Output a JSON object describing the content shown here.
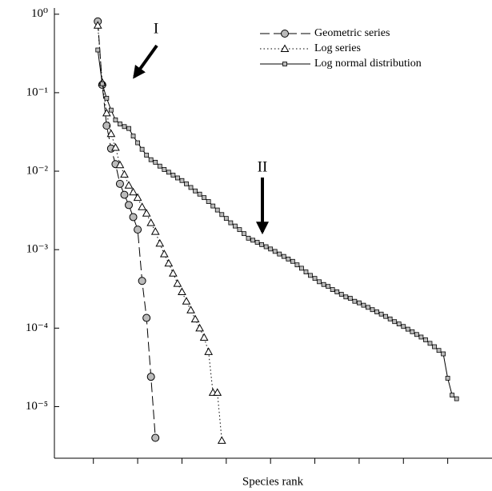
{
  "chart_data": {
    "type": "line",
    "xlabel": "Species rank",
    "yscale": "log",
    "ylim": [
      2.2e-06,
      1.2
    ],
    "yticks": [
      {
        "value": 1,
        "label": "10⁰"
      },
      {
        "value": 0.1,
        "label": "10⁻¹"
      },
      {
        "value": 0.01,
        "label": "10⁻²"
      },
      {
        "value": 0.001,
        "label": "10⁻³"
      },
      {
        "value": 0.0001,
        "label": "10⁻⁴"
      },
      {
        "value": 1e-05,
        "label": "10⁻⁵"
      }
    ],
    "xlim": [
      -8.8,
      90
    ],
    "xticks": [
      0,
      10,
      20,
      30,
      40,
      50,
      60,
      70,
      80
    ],
    "legend": "upper right",
    "annotations": [
      "I",
      "II"
    ],
    "series": [
      {
        "name": "Geometric series",
        "color": "#000000",
        "marker": "circle",
        "linestyle": "dashed",
        "x": [
          1,
          2,
          3,
          4,
          5,
          6,
          7,
          8,
          9,
          10,
          11,
          12,
          13,
          14
        ],
        "values": [
          0.81,
          0.126,
          0.038,
          0.0194,
          0.0123,
          0.0069,
          0.005,
          0.0037,
          0.0026,
          0.0018,
          0.0004,
          0.000135,
          2.4e-05,
          4e-06
        ]
      },
      {
        "name": "Log series",
        "color": "#000000",
        "marker": "triangle",
        "linestyle": "dotted",
        "x": [
          1,
          2,
          3,
          4,
          5,
          6,
          7,
          8,
          9,
          10,
          11,
          12,
          13,
          14,
          15,
          16,
          17,
          18,
          19,
          20,
          21,
          22,
          23,
          24,
          25,
          26,
          27,
          28,
          29
        ],
        "values": [
          0.72,
          0.135,
          0.055,
          0.03,
          0.02,
          0.012,
          0.0091,
          0.0066,
          0.0054,
          0.0046,
          0.0035,
          0.0029,
          0.0022,
          0.0017,
          0.0012,
          0.00088,
          0.00067,
          0.0005,
          0.00037,
          0.00029,
          0.00022,
          0.00017,
          0.00013,
          0.0001,
          7.6e-05,
          5e-05,
          1.51e-05,
          1.51e-05,
          3.7e-06
        ]
      },
      {
        "name": "Log normal distribution",
        "color": "#000000",
        "marker": "square",
        "linestyle": "solid",
        "x": [
          1,
          2,
          3,
          4,
          5,
          6,
          7,
          8,
          9,
          10,
          11,
          12,
          13,
          14,
          15,
          16,
          17,
          18,
          19,
          20,
          21,
          22,
          23,
          24,
          25,
          26,
          27,
          28,
          29,
          30,
          31,
          32,
          33,
          34,
          35,
          36,
          37,
          38,
          39,
          40,
          41,
          42,
          43,
          44,
          45,
          46,
          47,
          48,
          49,
          50,
          51,
          52,
          53,
          54,
          55,
          56,
          57,
          58,
          59,
          60,
          61,
          62,
          63,
          64,
          65,
          66,
          67,
          68,
          69,
          70,
          71,
          72,
          73,
          74,
          75,
          76,
          77,
          78,
          79,
          80,
          81,
          82
        ],
        "values": [
          0.35,
          0.13,
          0.085,
          0.06,
          0.045,
          0.04,
          0.037,
          0.035,
          0.028,
          0.023,
          0.019,
          0.016,
          0.014,
          0.013,
          0.0116,
          0.0105,
          0.0097,
          0.0089,
          0.0082,
          0.0076,
          0.0069,
          0.0062,
          0.0056,
          0.0051,
          0.0046,
          0.0041,
          0.0036,
          0.0032,
          0.0028,
          0.0025,
          0.0022,
          0.002,
          0.0018,
          0.0016,
          0.0014,
          0.00132,
          0.00124,
          0.00116,
          0.00109,
          0.00102,
          0.00095,
          0.00088,
          0.00082,
          0.00076,
          0.00071,
          0.00064,
          0.00058,
          0.00052,
          0.00047,
          0.00043,
          0.00039,
          0.00036,
          0.00034,
          0.00031,
          0.00029,
          0.00027,
          0.00025,
          0.00024,
          0.00022,
          0.00021,
          0.000196,
          0.000184,
          0.000172,
          0.000161,
          0.000151,
          0.000141,
          0.000131,
          0.000121,
          0.000113,
          0.000105,
          9.7e-05,
          9e-05,
          8.3e-05,
          7.7e-05,
          7.1e-05,
          6.4e-05,
          5.8e-05,
          5.2e-05,
          4.7e-05,
          2.3e-05,
          1.4e-05,
          1.26e-05
        ]
      }
    ]
  }
}
